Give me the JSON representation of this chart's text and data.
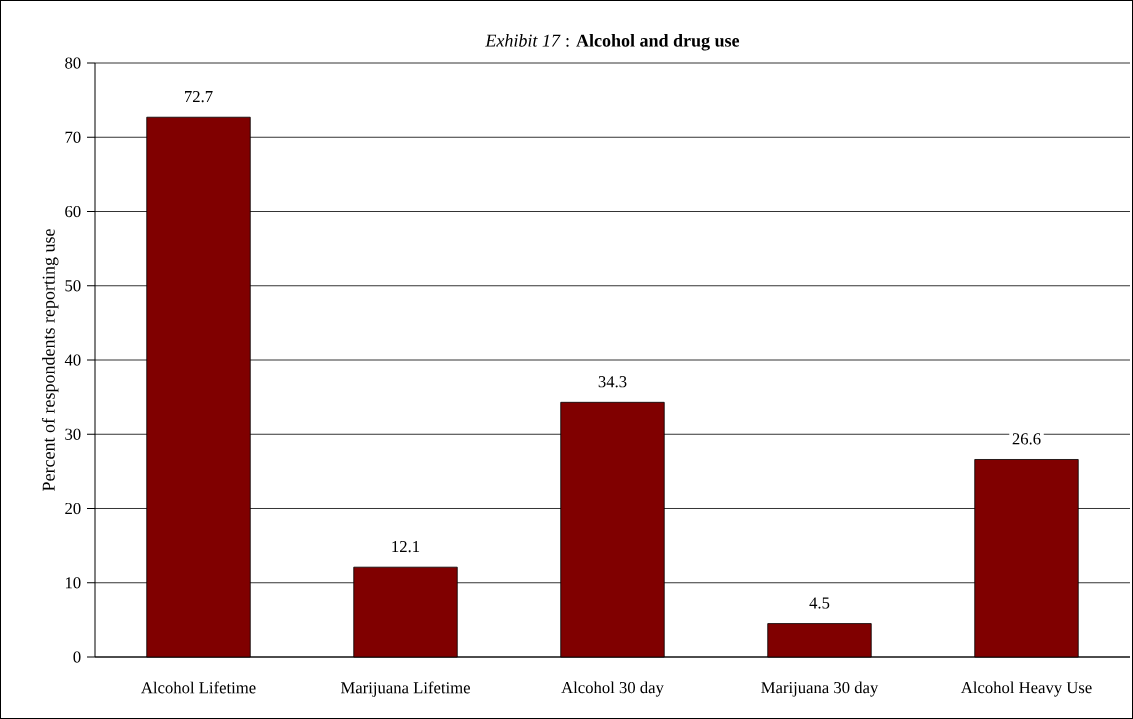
{
  "chart_data": {
    "type": "bar",
    "title": "*Exhibit 17* : **Alcohol and drug use**",
    "ylabel": "Percent of respondents reporting use",
    "categories": [
      "Alcohol Lifetime",
      "Marijuana Lifetime",
      "Alcohol 30 day",
      "Marijuana 30 day",
      "Alcohol Heavy Use"
    ],
    "values": [
      72.7,
      12.1,
      34.3,
      4.5,
      26.6
    ],
    "color": "#800000",
    "ylim": [
      0,
      80
    ],
    "yticks": [
      0,
      10,
      20,
      30,
      40,
      50,
      60,
      70,
      80
    ],
    "grid": "y",
    "data_labels": true
  }
}
